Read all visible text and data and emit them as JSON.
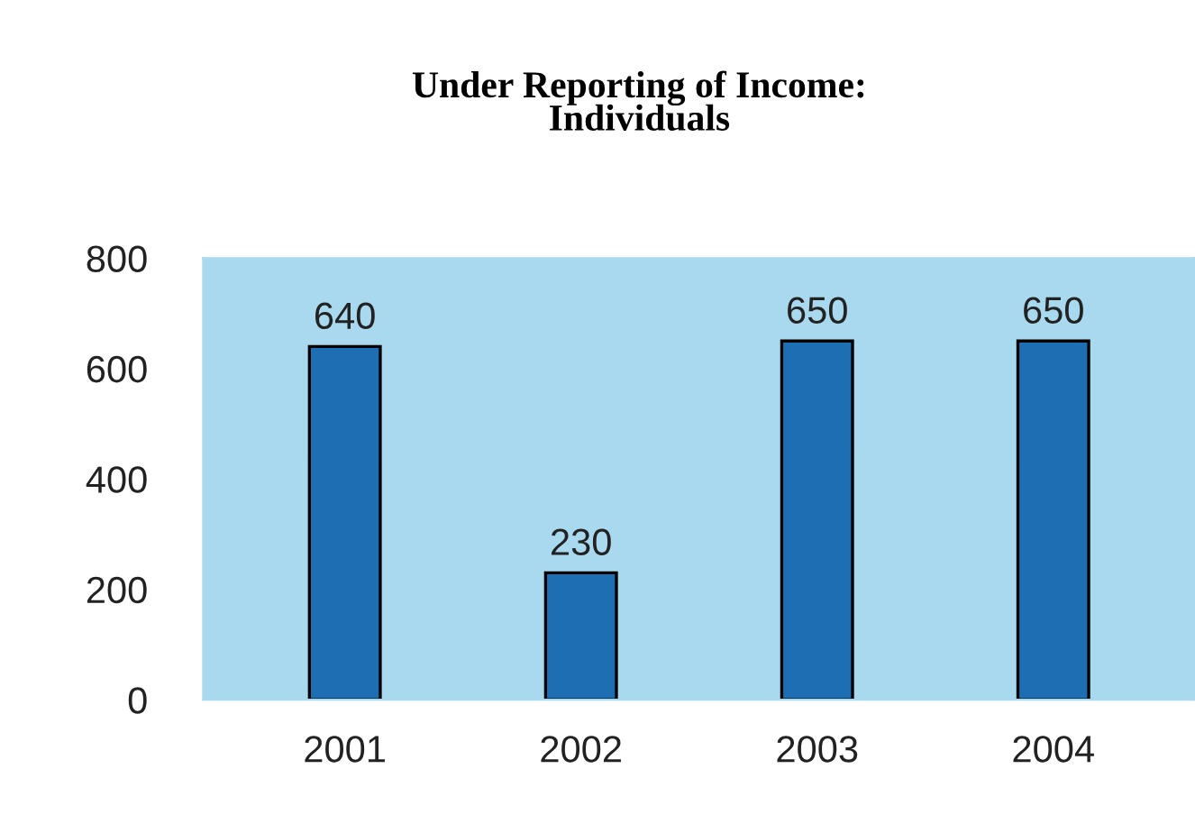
{
  "chart_data": {
    "type": "bar",
    "title": "Under Reporting of Income:\nIndividuals",
    "categories": [
      "2001",
      "2002",
      "2003",
      "2004"
    ],
    "values": [
      640,
      230,
      650,
      650
    ],
    "color": "#1e6eb4",
    "ylim": [
      0,
      800
    ],
    "yticks": [
      0,
      200,
      400,
      600,
      800
    ],
    "grid": false,
    "data_labels": true
  }
}
